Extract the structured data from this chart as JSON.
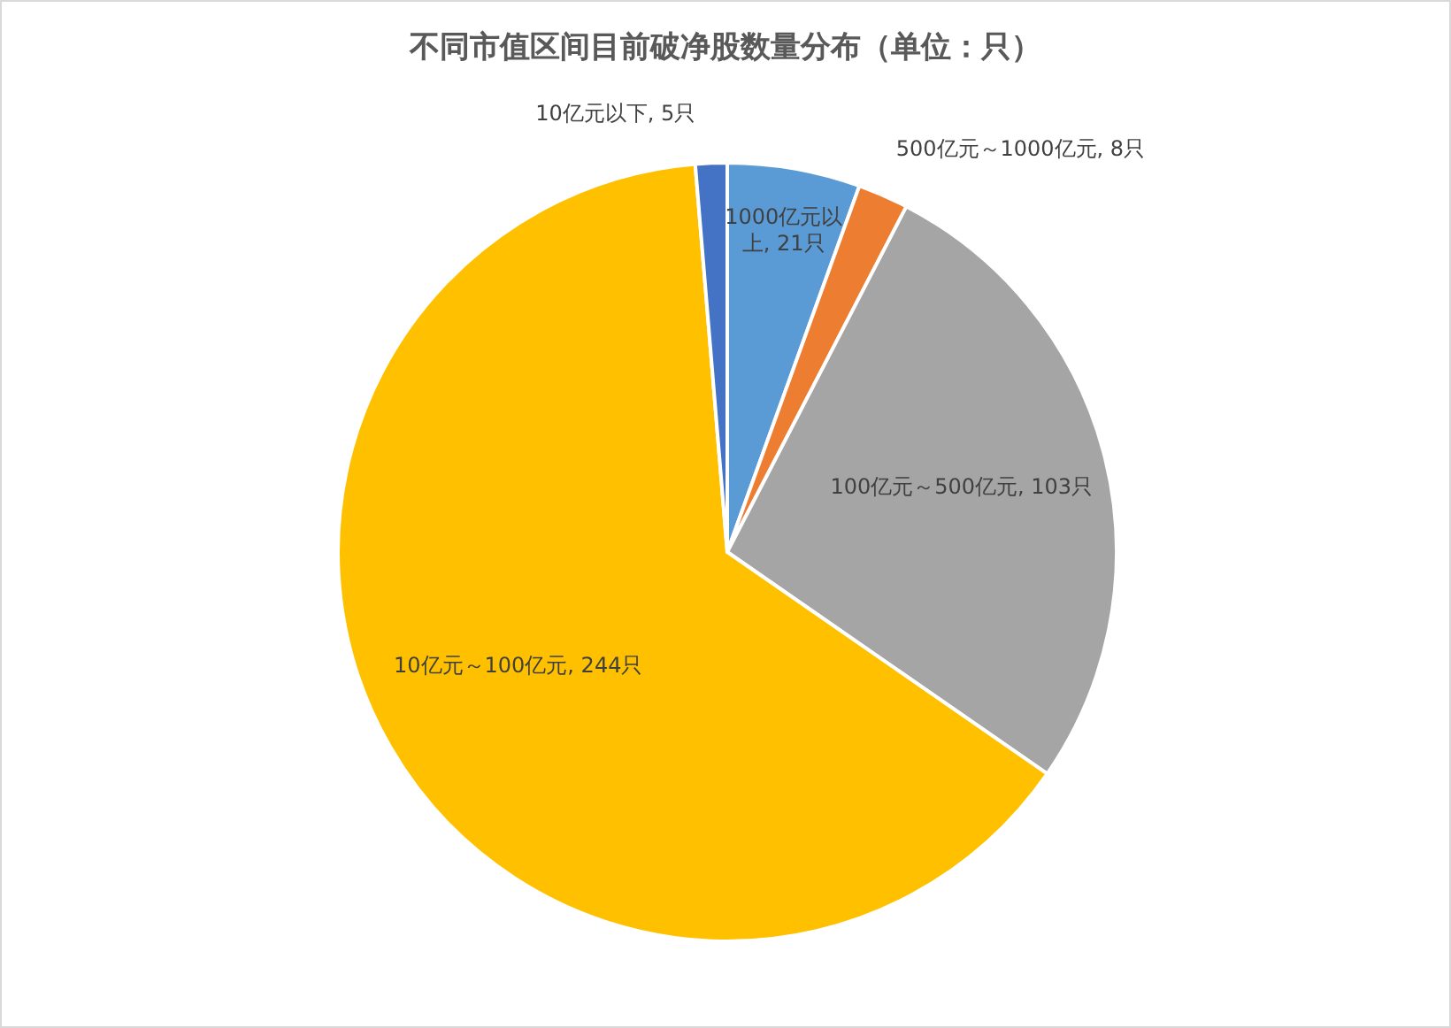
{
  "chart_data": {
    "type": "pie",
    "title": "不同市值区间目前破净股数量分布（单位：只）",
    "categories": [
      "1000亿元以上",
      "500亿元～1000亿元",
      "100亿元～500亿元",
      "10亿元～100亿元",
      "10亿元以下"
    ],
    "values": [
      21,
      8,
      103,
      244,
      5
    ],
    "value_labels": [
      "21只",
      "8只",
      "103只",
      "244只",
      "5只"
    ],
    "colors": [
      "#5b9bd5",
      "#ed7d31",
      "#a5a5a5",
      "#ffc000",
      "#4472c4"
    ]
  }
}
